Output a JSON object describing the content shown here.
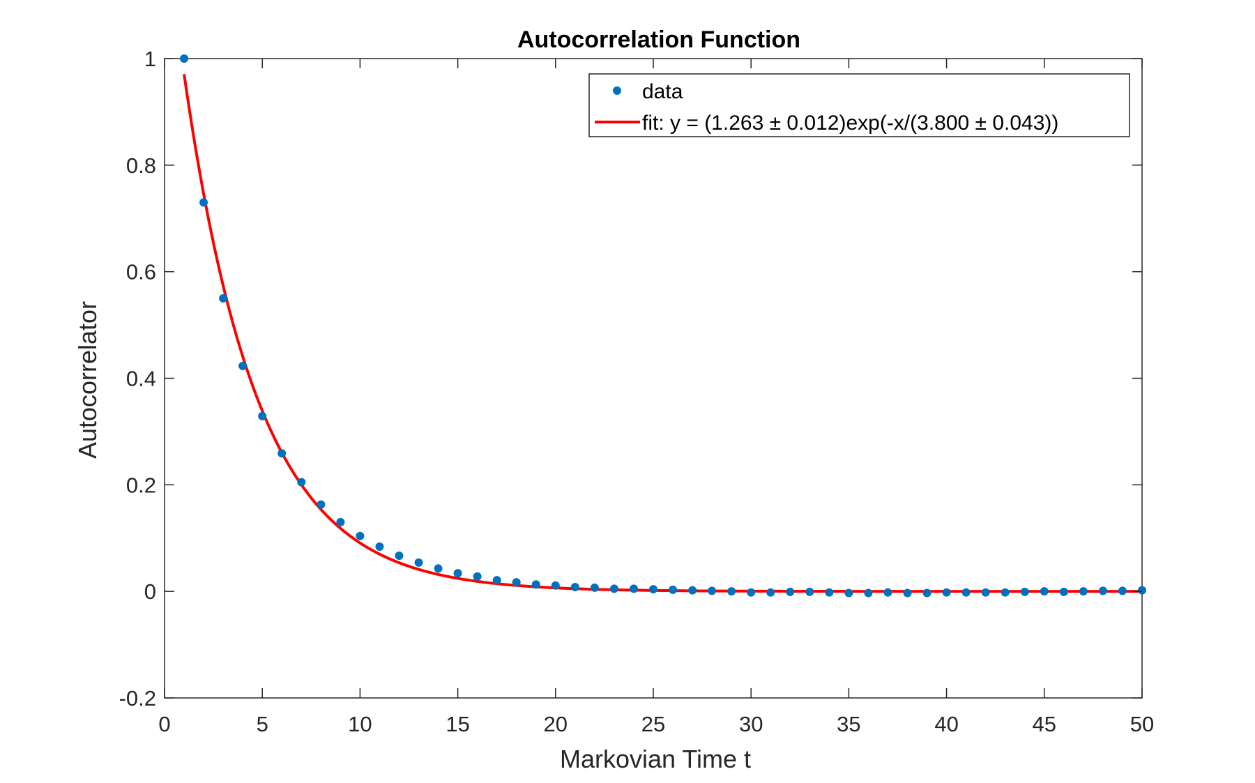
{
  "chart_data": {
    "type": "scatter",
    "title": "Autocorrelation Function",
    "xlabel": "Markovian Time t",
    "ylabel": "Autocorrelator",
    "xlim": [
      0,
      50
    ],
    "ylim": [
      -0.2,
      1
    ],
    "xticks": [
      "0",
      "5",
      "10",
      "15",
      "20",
      "25",
      "30",
      "35",
      "40",
      "45",
      "50"
    ],
    "yticks": [
      "-0.2",
      "0",
      "0.2",
      "0.4",
      "0.6",
      "0.8",
      "1"
    ],
    "grid": false,
    "legend_position": "top-right",
    "series": [
      {
        "name": "data",
        "kind": "points",
        "color": "#0072BD",
        "x": [
          1,
          2,
          3,
          4,
          5,
          6,
          7,
          8,
          9,
          10,
          11,
          12,
          13,
          14,
          15,
          16,
          17,
          18,
          19,
          20,
          21,
          22,
          23,
          24,
          25,
          26,
          27,
          28,
          29,
          30,
          31,
          32,
          33,
          34,
          35,
          36,
          37,
          38,
          39,
          40,
          41,
          42,
          43,
          44,
          45,
          46,
          47,
          48,
          49,
          50
        ],
        "y": [
          1.0,
          0.73,
          0.55,
          0.423,
          0.329,
          0.259,
          0.205,
          0.163,
          0.13,
          0.104,
          0.084,
          0.067,
          0.054,
          0.043,
          0.034,
          0.028,
          0.021,
          0.017,
          0.013,
          0.011,
          0.008,
          0.007,
          0.005,
          0.005,
          0.004,
          0.003,
          0.002,
          0.001,
          0.0,
          -0.002,
          -0.002,
          -0.001,
          -0.001,
          -0.002,
          -0.003,
          -0.003,
          -0.002,
          -0.003,
          -0.003,
          -0.002,
          -0.002,
          -0.002,
          -0.002,
          -0.001,
          0.0,
          -0.001,
          0.0,
          0.001,
          0.001,
          0.002
        ]
      },
      {
        "name": "fit: y = (1.263 ± 0.012)exp(-x/(3.800 ± 0.043))",
        "kind": "line",
        "color": "#FF0000",
        "amplitude": 1.263,
        "decay": 3.8,
        "x_start": 1,
        "x_end": 50
      }
    ]
  }
}
